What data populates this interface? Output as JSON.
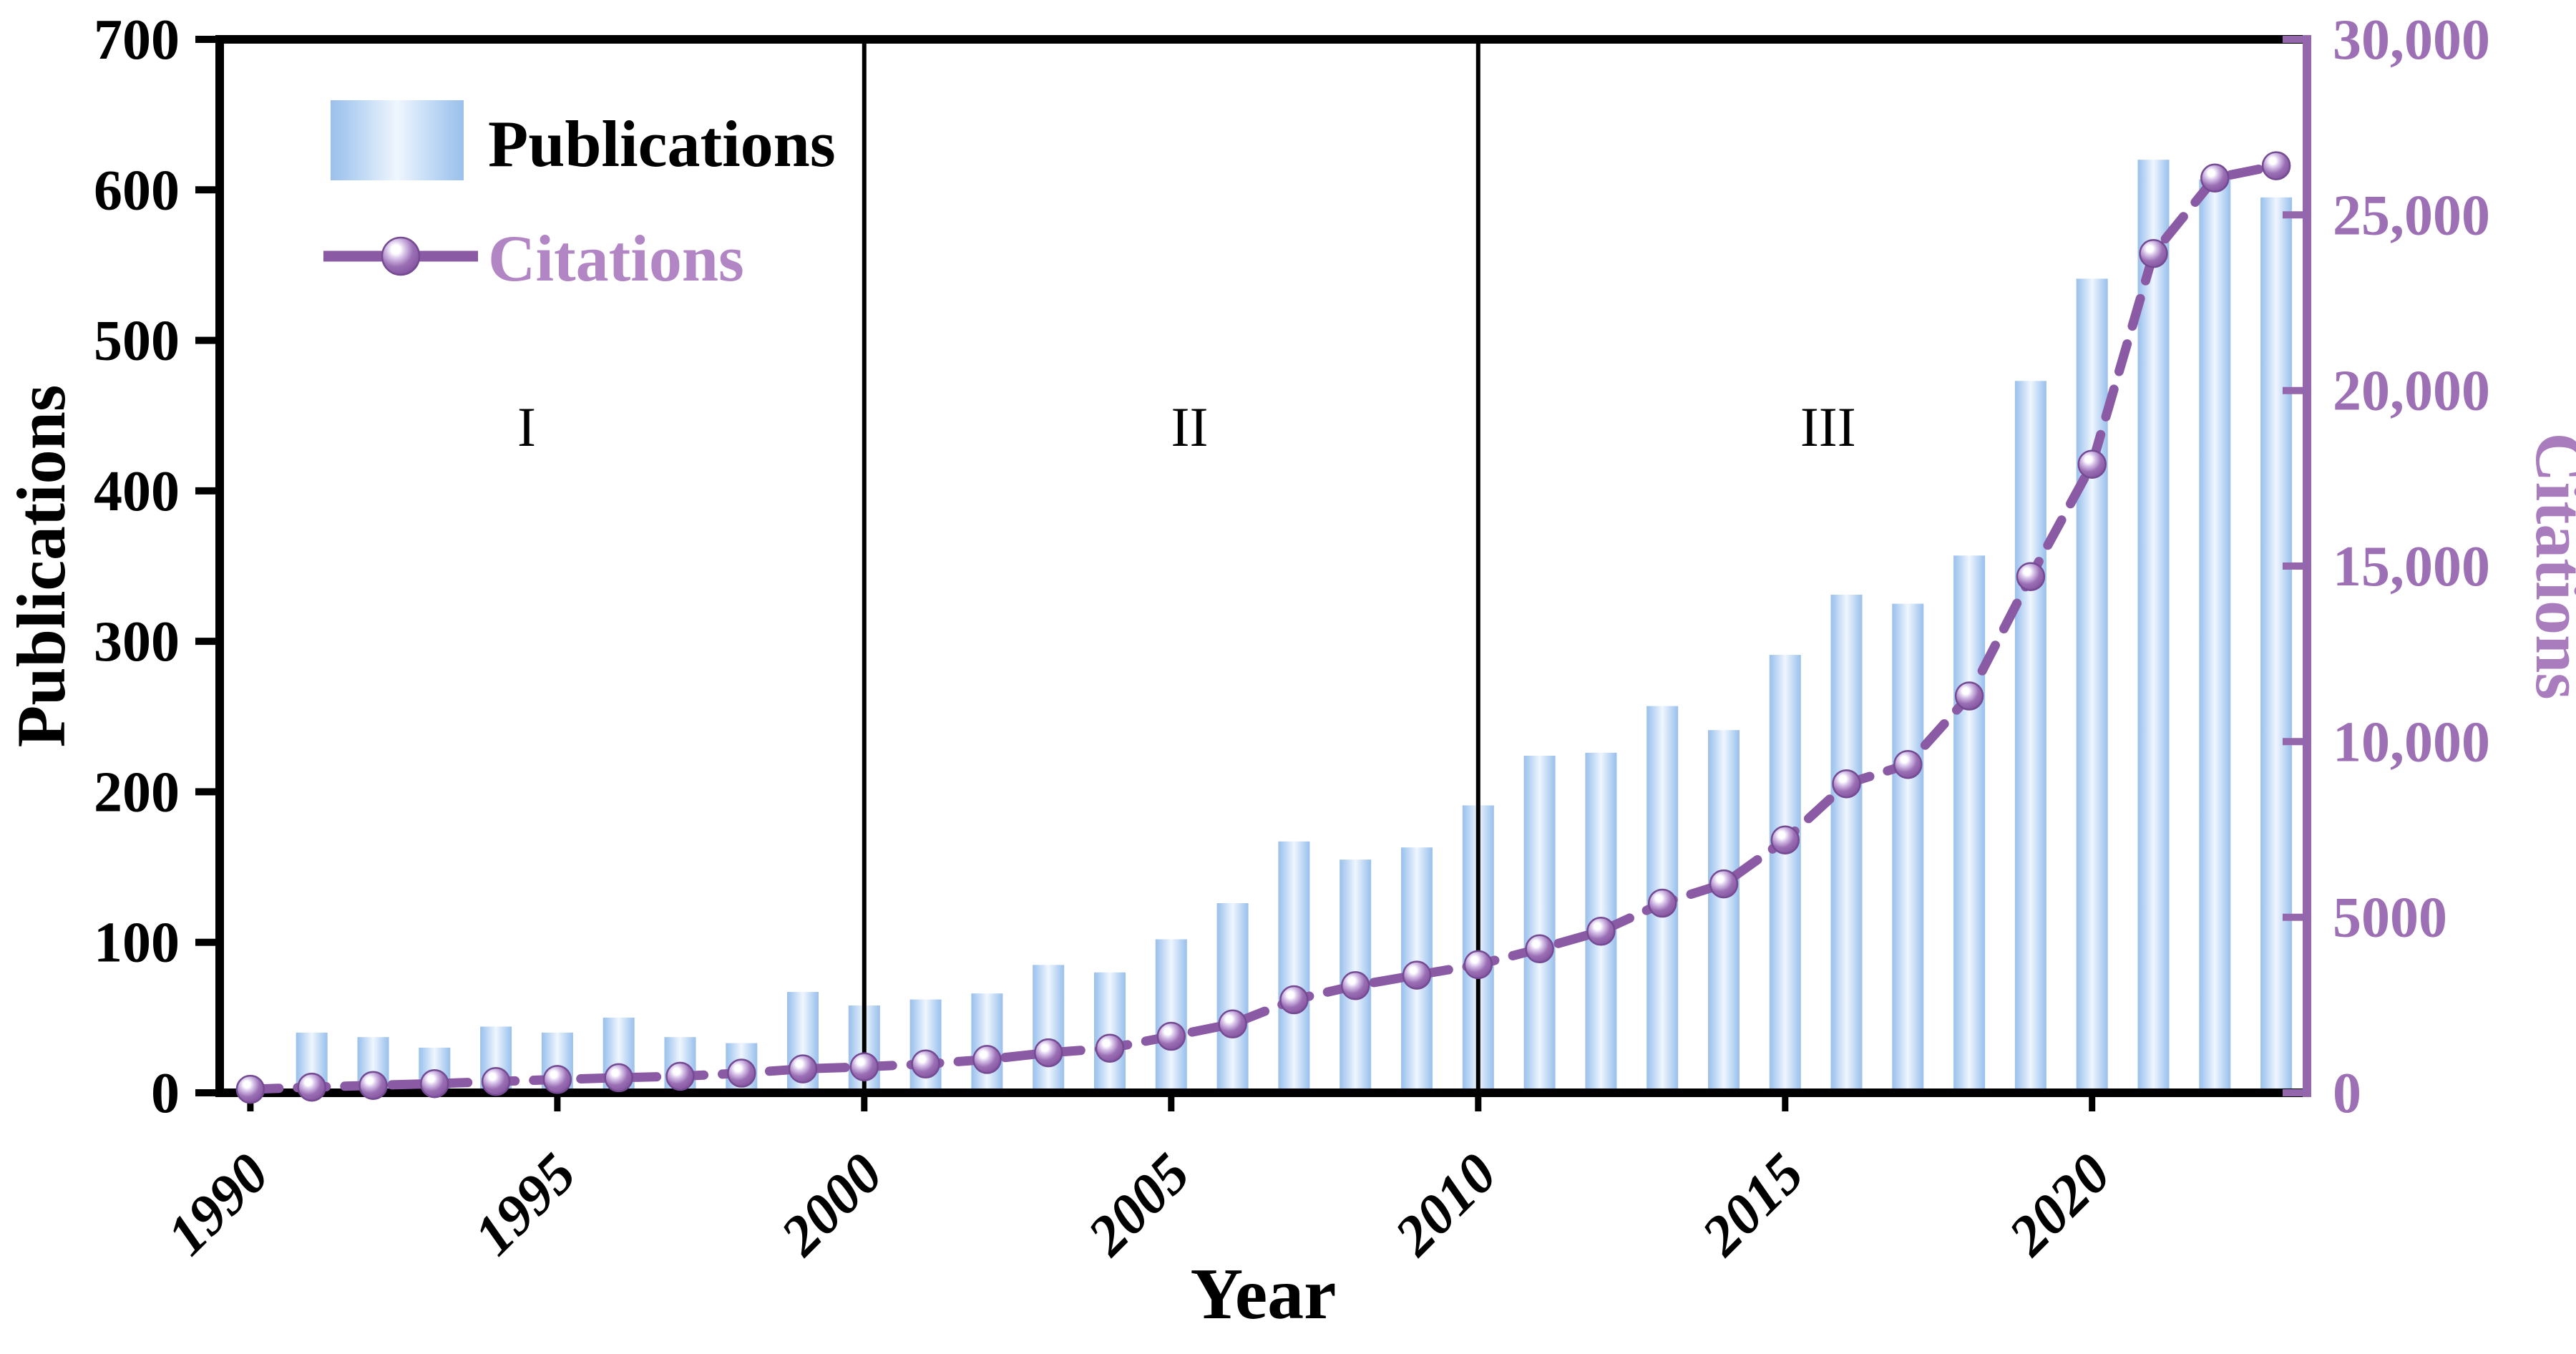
{
  "figure": {
    "xlabel": "Year",
    "ylabel_left": "Publications",
    "ylabel_right": "Citations",
    "legend": {
      "publications_label": "Publications",
      "citations_label": "Citations"
    },
    "colors": {
      "black": "#000000",
      "bar_edge_dark": "#9cc0ea",
      "bar_edge": "#a8caf0",
      "bar_mid": "#eff6fe",
      "line": "#8a5aa5",
      "marker_dark": "#744a92",
      "marker_mid": "#9a6fb4",
      "marker_light": "#d5c0e8",
      "right_axis": "#9467ad",
      "right_text": "#9d6fb5",
      "citations_axis_label": "#a97cbe",
      "legend_citations_text": "#b286c4"
    }
  },
  "chart_data": {
    "type": "bar",
    "subtype": "dual-axis bar + dashed line with sphere markers",
    "title": "",
    "xlabel": "Year",
    "ylabel_left": "Publications",
    "ylabel_right": "Citations",
    "x": [
      1990,
      1991,
      1992,
      1993,
      1994,
      1995,
      1996,
      1997,
      1998,
      1999,
      2000,
      2001,
      2002,
      2003,
      2004,
      2005,
      2006,
      2007,
      2008,
      2009,
      2010,
      2011,
      2012,
      2013,
      2014,
      2015,
      2016,
      2017,
      2018,
      2019,
      2020,
      2021,
      2022,
      2023
    ],
    "series": [
      {
        "name": "Publications",
        "type": "bar",
        "axis": "left",
        "values": [
          3,
          40,
          37,
          30,
          44,
          40,
          50,
          37,
          33,
          67,
          58,
          62,
          66,
          85,
          80,
          102,
          126,
          167,
          155,
          163,
          191,
          224,
          226,
          257,
          241,
          291,
          331,
          325,
          357,
          473,
          541,
          620,
          607,
          595
        ]
      },
      {
        "name": "Citations",
        "type": "line",
        "axis": "right",
        "values": [
          100,
          160,
          210,
          260,
          320,
          380,
          430,
          470,
          560,
          680,
          740,
          820,
          950,
          1140,
          1270,
          1610,
          1960,
          2650,
          3050,
          3350,
          3650,
          4100,
          4600,
          5400,
          5950,
          7200,
          8800,
          9350,
          11300,
          14700,
          17900,
          23900,
          26050,
          26400
        ]
      }
    ],
    "ylim_left": [
      0,
      700
    ],
    "ylim_right": [
      0,
      30000
    ],
    "yticks_left": [
      "0",
      "100",
      "200",
      "300",
      "400",
      "500",
      "600",
      "700"
    ],
    "yticks_left_values": [
      0,
      100,
      200,
      300,
      400,
      500,
      600,
      700
    ],
    "yticks_right": [
      "0",
      "5000",
      "10,000",
      "15,000",
      "20,000",
      "25,000",
      "30,000"
    ],
    "yticks_right_values": [
      0,
      5000,
      10000,
      15000,
      20000,
      25000,
      30000
    ],
    "xticks": [
      1990,
      1995,
      2000,
      2005,
      2010,
      2015,
      2020
    ],
    "xtick_labels": [
      "1990",
      "1995",
      "2000",
      "2005",
      "2010",
      "2015",
      "2020"
    ],
    "dividers": [
      2000,
      2010
    ],
    "region_labels": [
      {
        "text": "I",
        "year": 1994.5,
        "value": 430
      },
      {
        "text": "II",
        "year": 2005.3,
        "value": 430
      },
      {
        "text": "III",
        "year": 2015.7,
        "value": 430
      }
    ],
    "grid": false,
    "legend_position": "upper-left"
  }
}
